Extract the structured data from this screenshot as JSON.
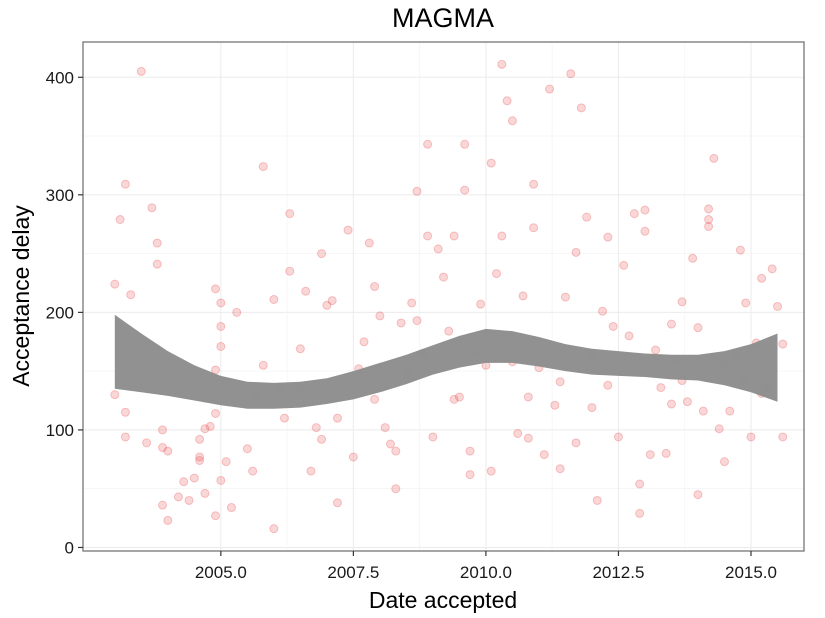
{
  "chart_data": {
    "type": "scatter",
    "title": "MAGMA",
    "xlabel": "Date accepted",
    "ylabel": "Acceptance delay",
    "xlim": [
      2002.4,
      2016.0
    ],
    "ylim": [
      -3,
      430
    ],
    "x_ticks": [
      2005.0,
      2007.5,
      2010.0,
      2012.5,
      2015.0
    ],
    "x_tick_labels": [
      "2005.0",
      "2007.5",
      "2010.0",
      "2012.5",
      "2015.0"
    ],
    "y_ticks": [
      0,
      100,
      200,
      300,
      400
    ],
    "y_tick_labels": [
      "0",
      "100",
      "200",
      "300",
      "400"
    ],
    "grid": true,
    "point_color": "#e8474b",
    "band_color": "#8c8c8c",
    "series": [
      {
        "type": "points",
        "points": [
          [
            2003.0,
            224
          ],
          [
            2003.1,
            279
          ],
          [
            2003.2,
            309
          ],
          [
            2003.3,
            215
          ],
          [
            2003.5,
            405
          ],
          [
            2003.7,
            289
          ],
          [
            2003.8,
            241
          ],
          [
            2003.8,
            259
          ],
          [
            2003.2,
            115
          ],
          [
            2003.0,
            130
          ],
          [
            2003.2,
            94
          ],
          [
            2003.6,
            89
          ],
          [
            2003.9,
            85
          ],
          [
            2003.9,
            100
          ],
          [
            2004.0,
            82
          ],
          [
            2003.9,
            36
          ],
          [
            2004.0,
            23
          ],
          [
            2004.2,
            43
          ],
          [
            2004.3,
            56
          ],
          [
            2004.4,
            40
          ],
          [
            2004.5,
            59
          ],
          [
            2004.6,
            77
          ],
          [
            2004.6,
            74
          ],
          [
            2004.6,
            92
          ],
          [
            2004.7,
            101
          ],
          [
            2004.8,
            103
          ],
          [
            2004.9,
            114
          ],
          [
            2004.9,
            151
          ],
          [
            2005.0,
            171
          ],
          [
            2005.0,
            188
          ],
          [
            2004.9,
            220
          ],
          [
            2005.0,
            208
          ],
          [
            2005.1,
            73
          ],
          [
            2004.9,
            27
          ],
          [
            2005.0,
            57
          ],
          [
            2005.3,
            200
          ],
          [
            2005.5,
            84
          ],
          [
            2005.6,
            65
          ],
          [
            2005.8,
            155
          ],
          [
            2005.8,
            324
          ],
          [
            2006.0,
            211
          ],
          [
            2006.1,
            135
          ],
          [
            2006.2,
            110
          ],
          [
            2006.3,
            235
          ],
          [
            2006.3,
            284
          ],
          [
            2006.5,
            169
          ],
          [
            2006.6,
            218
          ],
          [
            2006.7,
            65
          ],
          [
            2006.8,
            102
          ],
          [
            2006.9,
            250
          ],
          [
            2007.0,
            206
          ],
          [
            2007.1,
            210
          ],
          [
            2007.2,
            110
          ],
          [
            2007.4,
            270
          ],
          [
            2007.5,
            77
          ],
          [
            2007.6,
            152
          ],
          [
            2007.8,
            259
          ],
          [
            2007.9,
            222
          ],
          [
            2007.9,
            126
          ],
          [
            2008.0,
            197
          ],
          [
            2008.1,
            102
          ],
          [
            2008.2,
            88
          ],
          [
            2008.3,
            82
          ],
          [
            2008.4,
            191
          ],
          [
            2008.6,
            208
          ],
          [
            2008.7,
            193
          ],
          [
            2008.7,
            303
          ],
          [
            2008.8,
            165
          ],
          [
            2008.9,
            343
          ],
          [
            2008.9,
            265
          ],
          [
            2009.0,
            94
          ],
          [
            2009.1,
            254
          ],
          [
            2009.2,
            230
          ],
          [
            2009.3,
            184
          ],
          [
            2009.4,
            265
          ],
          [
            2009.5,
            128
          ],
          [
            2009.6,
            343
          ],
          [
            2009.6,
            304
          ],
          [
            2009.7,
            82
          ],
          [
            2009.8,
            168
          ],
          [
            2009.9,
            207
          ],
          [
            2010.0,
            155
          ],
          [
            2010.1,
            65
          ],
          [
            2010.1,
            327
          ],
          [
            2010.2,
            233
          ],
          [
            2010.3,
            411
          ],
          [
            2010.3,
            265
          ],
          [
            2010.4,
            380
          ],
          [
            2010.5,
            363
          ],
          [
            2010.6,
            97
          ],
          [
            2010.7,
            214
          ],
          [
            2010.8,
            93
          ],
          [
            2010.9,
            309
          ],
          [
            2010.9,
            272
          ],
          [
            2011.0,
            153
          ],
          [
            2011.1,
            79
          ],
          [
            2011.2,
            390
          ],
          [
            2011.3,
            121
          ],
          [
            2011.4,
            141
          ],
          [
            2011.5,
            213
          ],
          [
            2011.6,
            403
          ],
          [
            2011.7,
            251
          ],
          [
            2011.7,
            89
          ],
          [
            2011.8,
            374
          ],
          [
            2011.9,
            281
          ],
          [
            2012.0,
            162
          ],
          [
            2012.1,
            40
          ],
          [
            2012.2,
            201
          ],
          [
            2012.3,
            264
          ],
          [
            2012.4,
            188
          ],
          [
            2012.5,
            94
          ],
          [
            2012.6,
            240
          ],
          [
            2012.7,
            180
          ],
          [
            2012.8,
            284
          ],
          [
            2012.9,
            29
          ],
          [
            2013.0,
            287
          ],
          [
            2013.0,
            269
          ],
          [
            2013.1,
            79
          ],
          [
            2013.2,
            168
          ],
          [
            2013.3,
            136
          ],
          [
            2013.4,
            80
          ],
          [
            2013.5,
            190
          ],
          [
            2013.6,
            159
          ],
          [
            2013.7,
            209
          ],
          [
            2013.8,
            124
          ],
          [
            2013.9,
            246
          ],
          [
            2014.0,
            45
          ],
          [
            2014.0,
            187
          ],
          [
            2014.1,
            116
          ],
          [
            2014.2,
            288
          ],
          [
            2014.2,
            279
          ],
          [
            2014.2,
            273
          ],
          [
            2014.3,
            331
          ],
          [
            2014.4,
            101
          ],
          [
            2014.5,
            156
          ],
          [
            2014.6,
            116
          ],
          [
            2014.7,
            164
          ],
          [
            2014.8,
            253
          ],
          [
            2014.9,
            208
          ],
          [
            2014.9,
            142
          ],
          [
            2015.0,
            94
          ],
          [
            2015.1,
            174
          ],
          [
            2015.2,
            229
          ],
          [
            2015.3,
            136
          ],
          [
            2015.4,
            237
          ],
          [
            2015.5,
            205
          ],
          [
            2015.6,
            173
          ],
          [
            2015.6,
            94
          ],
          [
            2005.7,
            130
          ],
          [
            2006.0,
            16
          ],
          [
            2007.2,
            38
          ],
          [
            2008.5,
            148
          ],
          [
            2010.5,
            158
          ],
          [
            2012.0,
            119
          ],
          [
            2013.5,
            122
          ],
          [
            2005.2,
            34
          ],
          [
            2006.9,
            92
          ],
          [
            2008.3,
            50
          ],
          [
            2009.7,
            62
          ],
          [
            2011.4,
            67
          ],
          [
            2012.9,
            54
          ],
          [
            2014.5,
            73
          ],
          [
            2004.7,
            46
          ],
          [
            2006.5,
            136
          ],
          [
            2007.7,
            175
          ],
          [
            2009.4,
            126
          ],
          [
            2010.8,
            128
          ],
          [
            2012.3,
            138
          ],
          [
            2013.7,
            142
          ],
          [
            2015.2,
            131
          ]
        ]
      },
      {
        "type": "band",
        "x": [
          2003.0,
          2003.5,
          2004.0,
          2004.5,
          2005.0,
          2005.5,
          2006.0,
          2006.5,
          2007.0,
          2007.5,
          2008.0,
          2008.5,
          2009.0,
          2009.5,
          2010.0,
          2010.5,
          2011.0,
          2011.5,
          2012.0,
          2012.5,
          2013.0,
          2013.5,
          2014.0,
          2014.5,
          2015.0,
          2015.5
        ],
        "upper": [
          198,
          182,
          167,
          155,
          146,
          141,
          140,
          141,
          144,
          150,
          157,
          164,
          172,
          180,
          186,
          184,
          179,
          173,
          169,
          167,
          165,
          164,
          164,
          167,
          173,
          182
        ],
        "lower": [
          135,
          132,
          129,
          125,
          121,
          118,
          118,
          119,
          122,
          126,
          132,
          139,
          147,
          153,
          157,
          157,
          154,
          150,
          147,
          146,
          145,
          143,
          142,
          138,
          132,
          124
        ]
      }
    ]
  }
}
